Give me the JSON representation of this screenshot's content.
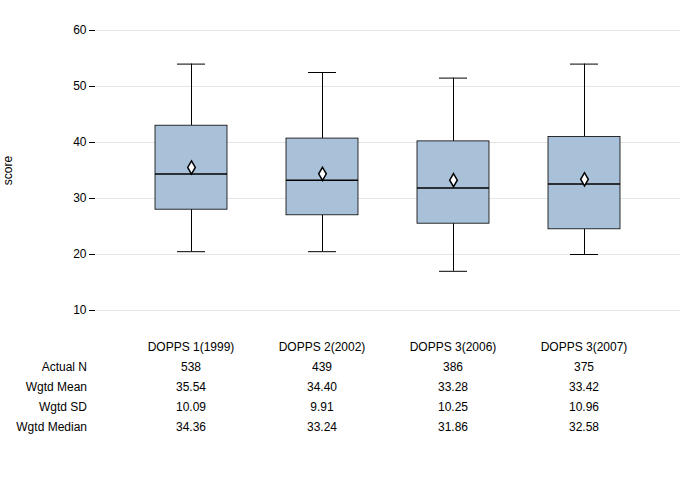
{
  "chart_data": {
    "type": "box",
    "ylabel": "score",
    "ylim": [
      10,
      60
    ],
    "yticks": [
      10,
      20,
      30,
      40,
      50,
      60
    ],
    "grid": true,
    "tick_labels": "y",
    "color": "#a8c0d8",
    "marker": "diamond",
    "categories": [
      "DOPPS 1(1999)",
      "DOPPS 2(2002)",
      "DOPPS 3(2006)",
      "DOPPS 3(2007)"
    ],
    "q1": [
      28.0,
      27.0,
      25.5,
      24.5
    ],
    "median": [
      34.36,
      33.24,
      31.86,
      32.58
    ],
    "q3": [
      43.0,
      40.7,
      40.2,
      41.0
    ],
    "whisker_low": [
      20.5,
      20.5,
      17.0,
      20.0
    ],
    "whisker_high": [
      54.0,
      52.5,
      51.5,
      54.0
    ],
    "mean": [
      35.54,
      34.4,
      33.28,
      33.42
    ],
    "table_rows": [
      "Actual N",
      "Wgtd Mean",
      "Wgtd SD",
      "Wgtd Median"
    ],
    "table_data": [
      [
        "538",
        "439",
        "386",
        "375"
      ],
      [
        "35.54",
        "34.40",
        "33.28",
        "33.42"
      ],
      [
        "10.09",
        "9.91",
        "10.25",
        "10.96"
      ],
      [
        "34.36",
        "33.24",
        "31.86",
        "32.58"
      ]
    ]
  }
}
